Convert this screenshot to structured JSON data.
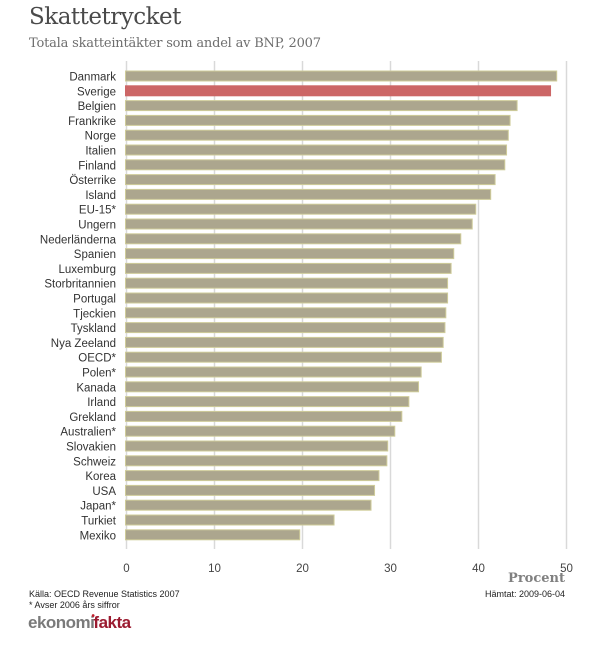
{
  "header": {
    "title": "Skattetrycket",
    "subtitle": "Totala skatteintäkter som andel av BNP, 2007"
  },
  "footer": {
    "source": "Källa: OECD Revenue Statistics 2007",
    "note": "* Avser 2006 års siffror",
    "retrieved": "Hämtat: 2009-06-04",
    "logo_left": "ekonomi",
    "logo_dot": "•",
    "logo_right": "fakta"
  },
  "colors": {
    "bar": "#aca68e",
    "bar_border": "#cfcc9a",
    "highlight": "#cc6666",
    "grid": "#d9d9d9"
  },
  "chart_data": {
    "type": "bar",
    "orientation": "horizontal",
    "title": "Skattetrycket",
    "subtitle": "Totala skatteintäkter som andel av BNP, 2007",
    "xlabel": "Procent",
    "ylabel": "",
    "xlim": [
      0,
      50
    ],
    "xticks": [
      0,
      10,
      20,
      30,
      40,
      50
    ],
    "grid": true,
    "highlight": "Sverige",
    "categories": [
      "Danmark",
      "Sverige",
      "Belgien",
      "Frankrike",
      "Norge",
      "Italien",
      "Finland",
      "Österrike",
      "Island",
      "EU-15*",
      "Ungern",
      "Nederländerna",
      "Spanien",
      "Luxemburg",
      "Storbritannien",
      "Portugal",
      "Tjeckien",
      "Tyskland",
      "Nya Zeeland",
      "OECD*",
      "Polen*",
      "Kanada",
      "Irland",
      "Grekland",
      "Australien*",
      "Slovakien",
      "Schweiz",
      "Korea",
      "USA",
      "Japan*",
      "Turkiet",
      "Mexiko"
    ],
    "values": [
      49.0,
      48.3,
      44.5,
      43.7,
      43.5,
      43.3,
      43.1,
      42.0,
      41.5,
      39.8,
      39.4,
      38.1,
      37.3,
      37.0,
      36.6,
      36.6,
      36.4,
      36.3,
      36.1,
      35.9,
      33.6,
      33.3,
      32.2,
      31.4,
      30.6,
      29.8,
      29.7,
      28.8,
      28.3,
      27.9,
      23.7,
      19.8
    ]
  }
}
